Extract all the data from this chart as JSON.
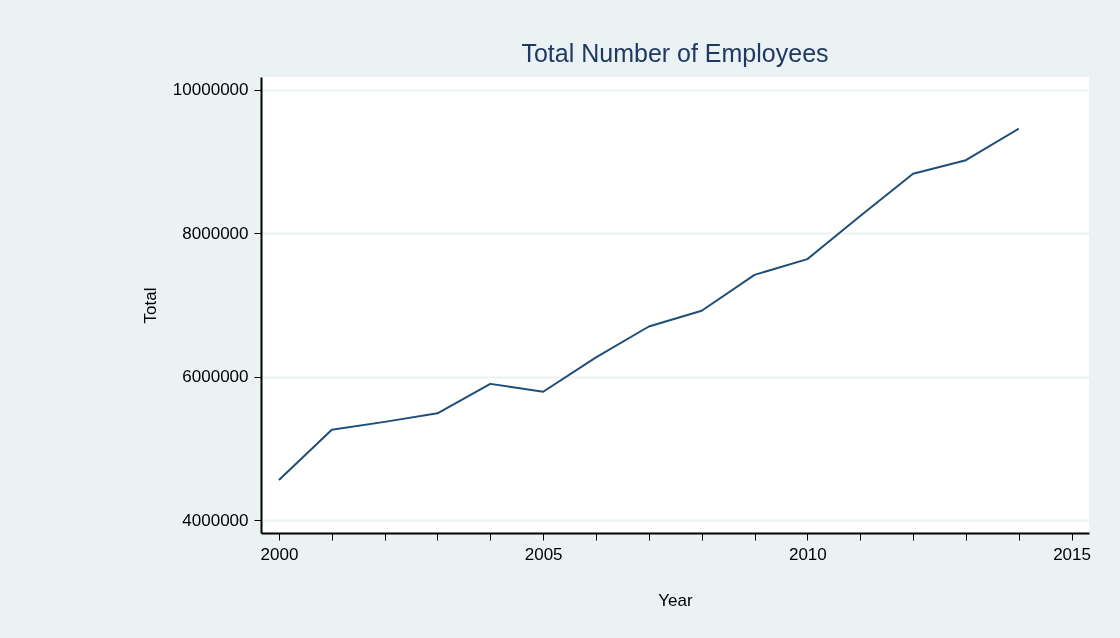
{
  "chart_data": {
    "type": "line",
    "title": "Total Number of Employees",
    "xlabel": "Year",
    "ylabel": "Total",
    "x": [
      2000,
      2001,
      2002,
      2003,
      2004,
      2005,
      2006,
      2007,
      2008,
      2009,
      2010,
      2011,
      2012,
      2013,
      2014
    ],
    "series": [
      {
        "color": "#1f4e79",
        "values": [
          4560000,
          5260000,
          5370000,
          5490000,
          5900000,
          5790000,
          6270000,
          6700000,
          6920000,
          7420000,
          7640000,
          8240000,
          8830000,
          9020000,
          9460000
        ]
      }
    ],
    "xlim": [
      1999.66,
      2015.33
    ],
    "xticks": [
      2000,
      {
        "value": 2001,
        "label": null
      },
      {
        "value": 2002,
        "label": null
      },
      {
        "value": 2003,
        "label": null
      },
      {
        "value": 2004,
        "label": null
      },
      2005,
      {
        "value": 2006,
        "label": null
      },
      {
        "value": 2007,
        "label": null
      },
      {
        "value": 2008,
        "label": null
      },
      {
        "value": 2009,
        "label": null
      },
      2010,
      {
        "value": 2011,
        "label": null
      },
      {
        "value": 2012,
        "label": null
      },
      {
        "value": 2013,
        "label": null
      },
      {
        "value": 2014,
        "label": null
      },
      2015
    ],
    "ylim": [
      3820000,
      10180000
    ],
    "yticks": [
      4000000,
      6000000,
      8000000,
      10000000
    ],
    "grid": "y",
    "marker": "none",
    "line_style": "solid"
  }
}
